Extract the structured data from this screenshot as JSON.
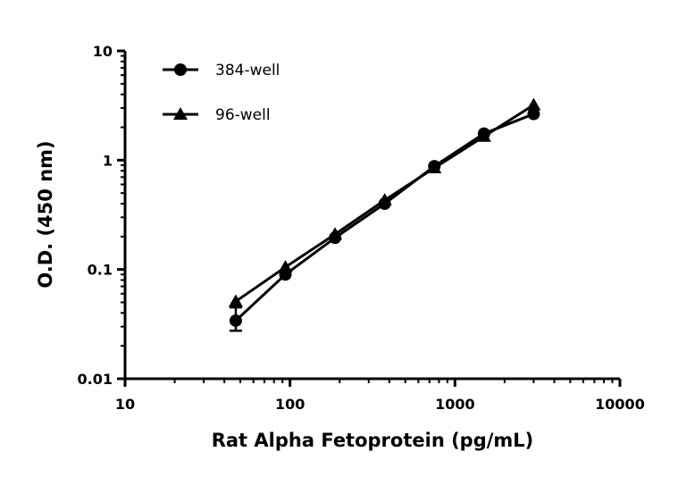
{
  "chart_data": {
    "type": "line",
    "xlabel": "Rat Alpha Fetoprotein (pg/mL)",
    "ylabel": "O.D. (450 nm)",
    "xscale": "log",
    "yscale": "log",
    "xlim": [
      10,
      10000
    ],
    "ylim": [
      0.01,
      10
    ],
    "xticks": [
      "10",
      "100",
      "1000",
      "10000"
    ],
    "yticks": [
      "0.01",
      "0.1",
      "1",
      "10"
    ],
    "grid": false,
    "legend_position": "top-left",
    "x": [
      46.9,
      93.75,
      187.5,
      375,
      750,
      1500,
      3000
    ],
    "series": [
      {
        "name": "384-well",
        "marker": "circle",
        "values": [
          0.034,
          0.09,
          0.195,
          0.4,
          0.88,
          1.75,
          2.65
        ],
        "error": [
          [
            0.0275,
            0.045
          ]
        ]
      },
      {
        "name": "96-well",
        "marker": "triangle",
        "values": [
          0.051,
          0.105,
          0.21,
          0.43,
          0.85,
          1.65,
          3.2
        ]
      }
    ],
    "color": "#000000"
  }
}
